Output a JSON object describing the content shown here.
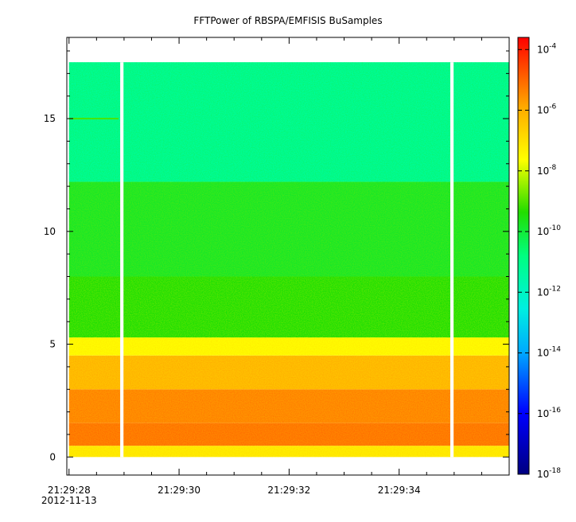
{
  "chart_data": {
    "type": "heatmap",
    "title": "FFTPower of RBSPA/EMFISIS  BuSamples",
    "xlabel": "",
    "ylabel": "",
    "x_ticks": [
      {
        "label": "21:29:28",
        "sub": "2012-11-13",
        "t": 0
      },
      {
        "label": "21:29:30",
        "sub": "",
        "t": 2
      },
      {
        "label": "21:29:32",
        "sub": "",
        "t": 4
      },
      {
        "label": "21:29:34",
        "sub": "",
        "t": 6
      }
    ],
    "x_range_seconds_from_2128": [
      -0.04,
      8.0
    ],
    "data_time_range": [
      0.0,
      8.0
    ],
    "y_ticks": [
      0,
      5,
      10,
      15
    ],
    "ylim": [
      -0.8,
      18.6
    ],
    "data_y_range": [
      0.0,
      17.5
    ],
    "data_gaps": [
      {
        "t_start": 0.93,
        "t_end": 0.99
      },
      {
        "t_start": 6.93,
        "t_end": 6.99
      }
    ],
    "colorbar": {
      "scale": "log",
      "min_exponent": -18,
      "max_exponent": -3.6,
      "tick_exponents": [
        -18,
        -16,
        -14,
        -12,
        -10,
        -8,
        -6,
        -4
      ],
      "tick_base": "10"
    },
    "bands": [
      {
        "y_from": 0.0,
        "y_to": 0.5,
        "log_power": -7.3
      },
      {
        "y_from": 0.5,
        "y_to": 1.5,
        "log_power": -5.4
      },
      {
        "y_from": 1.5,
        "y_to": 3.0,
        "log_power": -5.6
      },
      {
        "y_from": 3.0,
        "y_to": 4.5,
        "log_power": -6.4
      },
      {
        "y_from": 4.5,
        "y_to": 5.3,
        "log_power": -7.6
      },
      {
        "y_from": 5.3,
        "y_to": 8.0,
        "log_power": -9.4
      },
      {
        "y_from": 8.0,
        "y_to": 12.2,
        "log_power": -9.8
      },
      {
        "y_from": 12.2,
        "y_to": 17.5,
        "log_power": -11.2
      }
    ],
    "features": [
      {
        "description": "narrow line near 15 Hz at start",
        "y": 15.0,
        "t_start": 0.0,
        "t_end": 0.9,
        "log_power": -9.0
      }
    ]
  }
}
